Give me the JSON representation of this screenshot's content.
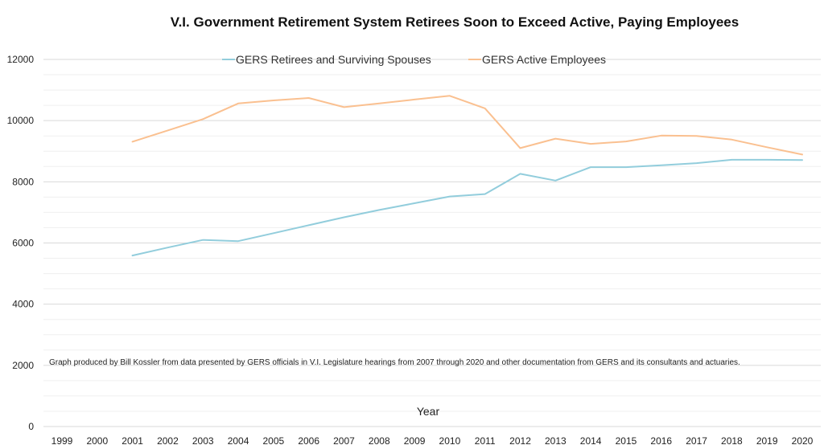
{
  "chart_data": {
    "type": "line",
    "title": "V.I. Government Retirement System Retirees Soon to Exceed Active, Paying Employees",
    "xlabel": "Year",
    "ylabel": "",
    "note": "Graph produced by Bill Kossler from data presented by GERS officials in V.I. Legislature hearings from 2007 through 2020 and other documentation from GERS and its consultants and actuaries.",
    "categories": [
      "1999",
      "2000",
      "2001",
      "2002",
      "2003",
      "2004",
      "2005",
      "2006",
      "2007",
      "2008",
      "2009",
      "2010",
      "2011",
      "2012",
      "2013",
      "2014",
      "2015",
      "2016",
      "2017",
      "2018",
      "2019",
      "2020"
    ],
    "ylim": [
      0,
      12000
    ],
    "yticks": [
      "0",
      "2000",
      "4000",
      "6000",
      "8000",
      "10000",
      "12000"
    ],
    "grid": true,
    "legend_position": "top-center",
    "series": [
      {
        "name": "GERS Retirees and Surviving Spouses",
        "color": "#92cddc",
        "values": [
          null,
          null,
          5590,
          5850,
          6100,
          6060,
          6320,
          6580,
          6840,
          7080,
          7300,
          7520,
          7600,
          8260,
          8040,
          8480,
          8480,
          8540,
          8610,
          8720,
          8720,
          8710
        ]
      },
      {
        "name": "GERS Active Employees",
        "color": "#fac090",
        "values": [
          null,
          null,
          9310,
          9680,
          10050,
          10560,
          10660,
          10740,
          10440,
          10560,
          10690,
          10810,
          10400,
          9100,
          9410,
          9240,
          9320,
          9510,
          9500,
          9380,
          9130,
          8890
        ]
      }
    ]
  }
}
